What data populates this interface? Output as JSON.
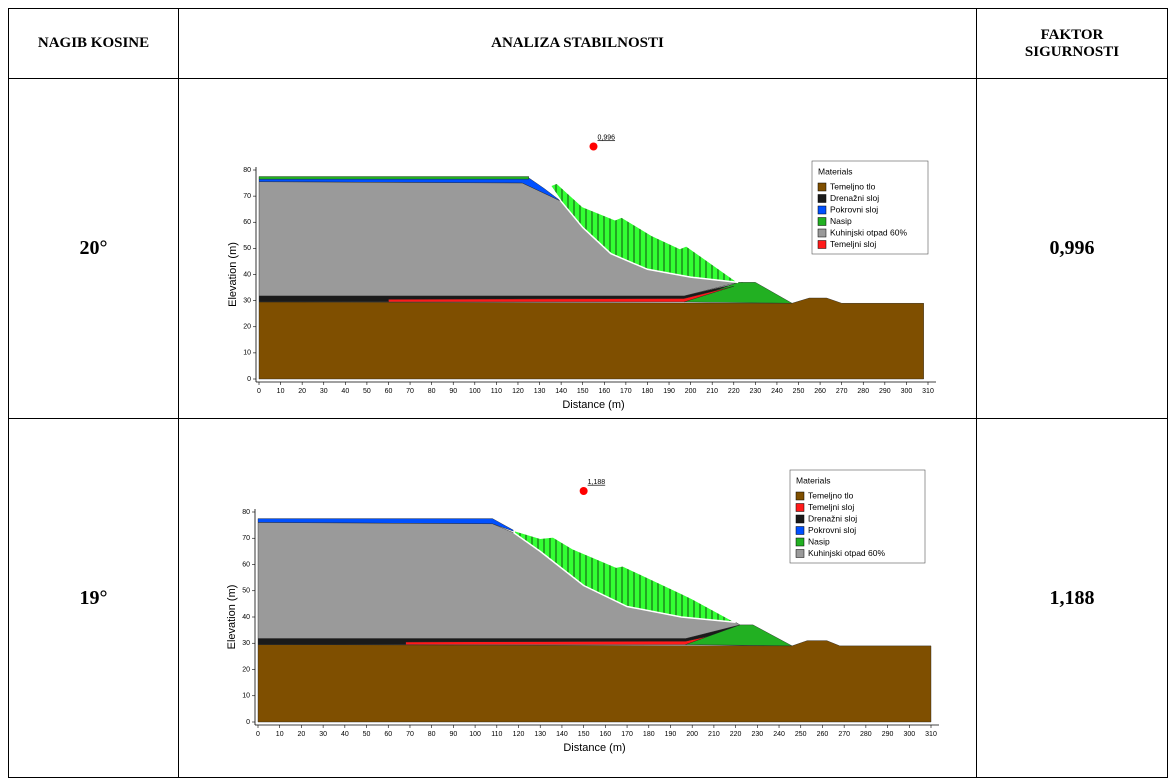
{
  "table": {
    "headers": [
      "NAGIB KOSINE",
      "ANALIZA STABILNOSTI",
      "FAKTOR SIGURNOSTI"
    ],
    "rows": [
      {
        "slope": "20°",
        "factor": "0,996",
        "figure": {
          "type": "slope-stability",
          "xlabel": "Distance (m)",
          "ylabel": "Elevation (m)",
          "xlim": [
            0,
            310
          ],
          "ylim": [
            0,
            80
          ],
          "xticks": [
            0,
            10,
            20,
            30,
            40,
            50,
            60,
            70,
            80,
            90,
            100,
            110,
            120,
            130,
            140,
            150,
            160,
            170,
            180,
            190,
            200,
            210,
            220,
            230,
            240,
            250,
            260,
            270,
            280,
            290,
            300,
            310
          ],
          "yticks": [
            0,
            10,
            20,
            30,
            40,
            50,
            60,
            70,
            80
          ],
          "center": {
            "x": 155,
            "y": 89,
            "label": "0,996"
          },
          "legend_title": "Materials",
          "materials": [
            {
              "name": "Temeljno tlo",
              "color": "#7f4f00",
              "polygons": [
                [
                  [
                    0,
                    0
                  ],
                  [
                    308,
                    0
                  ],
                  [
                    308,
                    29
                  ],
                  [
                    270,
                    29
                  ],
                  [
                    263,
                    31
                  ],
                  [
                    255,
                    31
                  ],
                  [
                    247,
                    29
                  ],
                  [
                    0,
                    29.5
                  ]
                ]
              ]
            },
            {
              "name": "Drenažni sloj",
              "color": "#1a1a1a",
              "polygons": [
                [
                  [
                    0,
                    29.5
                  ],
                  [
                    60,
                    29.5
                  ],
                  [
                    60,
                    30.5
                  ],
                  [
                    197,
                    30.8
                  ],
                  [
                    220,
                    35.5
                  ],
                  [
                    224,
                    37
                  ],
                  [
                    197,
                    31.8
                  ],
                  [
                    0,
                    31.8
                  ]
                ]
              ]
            },
            {
              "name": "Pokrovni sloj",
              "color": "#0050ff",
              "polygons": [
                [
                  [
                    0,
                    75.5
                  ],
                  [
                    122,
                    75
                  ],
                  [
                    140,
                    68
                  ],
                  [
                    132,
                    73
                  ],
                  [
                    125,
                    77
                  ],
                  [
                    0,
                    76.5
                  ]
                ]
              ]
            },
            {
              "name": "Nasip",
              "color": "#22b022",
              "polygons": [
                [
                  [
                    0,
                    76.5
                  ],
                  [
                    125,
                    76.5
                  ],
                  [
                    125,
                    77.5
                  ],
                  [
                    0,
                    77.5
                  ]
                ],
                [
                  [
                    197,
                    29.5
                  ],
                  [
                    222,
                    37
                  ],
                  [
                    230,
                    37
                  ],
                  [
                    247,
                    29
                  ]
                ]
              ]
            },
            {
              "name": "Kuhinjski otpad 60%",
              "color": "#9a9a9a",
              "polygons": [
                [
                  [
                    0,
                    31.8
                  ],
                  [
                    197,
                    31.8
                  ],
                  [
                    222,
                    37
                  ],
                  [
                    200,
                    39
                  ],
                  [
                    180,
                    42
                  ],
                  [
                    163,
                    48
                  ],
                  [
                    150,
                    58
                  ],
                  [
                    140,
                    68
                  ],
                  [
                    122,
                    75
                  ],
                  [
                    0,
                    75.5
                  ]
                ]
              ]
            },
            {
              "name": "Temeljni sloj",
              "color": "#ff1a1a",
              "polygons": [
                [
                  [
                    60,
                    29.5
                  ],
                  [
                    197,
                    29.5
                  ],
                  [
                    220,
                    35.5
                  ],
                  [
                    197,
                    30.8
                  ],
                  [
                    60,
                    30.5
                  ]
                ]
              ]
            }
          ],
          "slip_mass": [
            [
              135,
              74
            ],
            [
              138,
              75
            ],
            [
              150,
              66
            ],
            [
              165,
              61
            ],
            [
              168,
              62
            ],
            [
              172,
              60
            ],
            [
              182,
              55
            ],
            [
              195,
              50
            ],
            [
              198,
              51
            ],
            [
              222,
              37
            ],
            [
              200,
              39
            ],
            [
              180,
              42
            ],
            [
              163,
              48
            ],
            [
              150,
              58
            ],
            [
              140,
              68
            ]
          ]
        }
      },
      {
        "slope": "19°",
        "factor": "1,188",
        "figure": {
          "type": "slope-stability",
          "xlabel": "Distance (m)",
          "ylabel": "Elevation (m)",
          "xlim": [
            0,
            310
          ],
          "ylim": [
            0,
            80
          ],
          "xticks": [
            0,
            10,
            20,
            30,
            40,
            50,
            60,
            70,
            80,
            90,
            100,
            110,
            120,
            130,
            140,
            150,
            160,
            170,
            180,
            190,
            200,
            210,
            220,
            230,
            240,
            250,
            260,
            270,
            280,
            290,
            300,
            310
          ],
          "yticks": [
            0,
            10,
            20,
            30,
            40,
            50,
            60,
            70,
            80
          ],
          "center": {
            "x": 150,
            "y": 88,
            "label": "1,188"
          },
          "legend_title": "Materials",
          "materials": [
            {
              "name": "Temeljno tlo",
              "color": "#7f4f00",
              "polygons": [
                [
                  [
                    0,
                    0
                  ],
                  [
                    310,
                    0
                  ],
                  [
                    310,
                    29
                  ],
                  [
                    268,
                    29
                  ],
                  [
                    262,
                    31
                  ],
                  [
                    253,
                    31
                  ],
                  [
                    246,
                    29
                  ],
                  [
                    0,
                    29.5
                  ]
                ]
              ]
            },
            {
              "name": "Temeljni sloj",
              "color": "#ff1a1a",
              "polygons": [
                [
                  [
                    68,
                    29.5
                  ],
                  [
                    197,
                    29.5
                  ],
                  [
                    215,
                    34
                  ],
                  [
                    197,
                    30.8
                  ],
                  [
                    68,
                    30.5
                  ]
                ]
              ]
            },
            {
              "name": "Drenažni sloj",
              "color": "#1a1a1a",
              "polygons": [
                [
                  [
                    0,
                    29.5
                  ],
                  [
                    68,
                    29.5
                  ],
                  [
                    68,
                    30.5
                  ],
                  [
                    197,
                    30.8
                  ],
                  [
                    215,
                    34
                  ],
                  [
                    222,
                    37
                  ],
                  [
                    197,
                    31.8
                  ],
                  [
                    0,
                    31.8
                  ]
                ]
              ]
            },
            {
              "name": "Pokrovni sloj",
              "color": "#0050ff",
              "polygons": [
                [
                  [
                    0,
                    76
                  ],
                  [
                    108,
                    75.5
                  ],
                  [
                    120,
                    72
                  ],
                  [
                    108,
                    77.5
                  ],
                  [
                    0,
                    77.5
                  ]
                ]
              ]
            },
            {
              "name": "Nasip",
              "color": "#22b022",
              "polygons": [
                [
                  [
                    197,
                    29.5
                  ],
                  [
                    222,
                    37
                  ],
                  [
                    228,
                    37
                  ],
                  [
                    246,
                    29
                  ]
                ]
              ]
            },
            {
              "name": "Kuhinjski otpad 60%",
              "color": "#9a9a9a",
              "polygons": [
                [
                  [
                    0,
                    31.8
                  ],
                  [
                    197,
                    31.8
                  ],
                  [
                    222,
                    37
                  ],
                  [
                    220,
                    38
                  ],
                  [
                    195,
                    40
                  ],
                  [
                    170,
                    44
                  ],
                  [
                    150,
                    52
                  ],
                  [
                    130,
                    65
                  ],
                  [
                    118,
                    72
                  ],
                  [
                    108,
                    75.5
                  ],
                  [
                    0,
                    76
                  ]
                ]
              ]
            }
          ],
          "slip_mass": [
            [
              118,
              73
            ],
            [
              130,
              70
            ],
            [
              136,
              70.5
            ],
            [
              145,
              66
            ],
            [
              165,
              59
            ],
            [
              168,
              59.5
            ],
            [
              195,
              49
            ],
            [
              200,
              47
            ],
            [
              220,
              38
            ],
            [
              195,
              40
            ],
            [
              170,
              44
            ],
            [
              150,
              52
            ],
            [
              130,
              65
            ],
            [
              118,
              72
            ]
          ]
        }
      }
    ]
  }
}
